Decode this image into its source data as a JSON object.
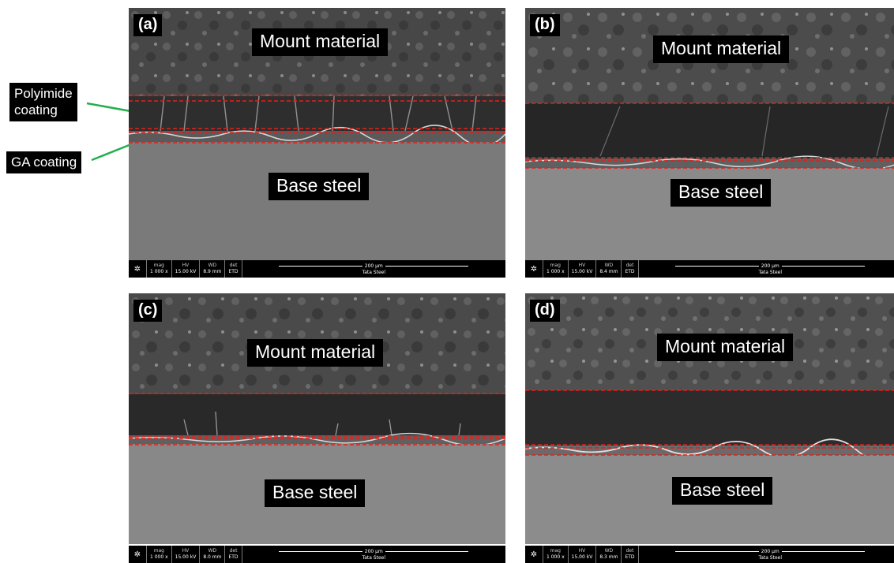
{
  "callouts": {
    "polyimide": "Polyimide\ncoating",
    "ga": "GA coating"
  },
  "panels": [
    {
      "tag": "(a)",
      "mount": "Mount material",
      "base": "Base steel",
      "mag": "1 000 x",
      "hv": "15.00 kV",
      "wd": "8.9 mm",
      "det": "ETD",
      "scale": "200 µm",
      "company": "Tata Steel"
    },
    {
      "tag": "(b)",
      "mount": "Mount material",
      "base": "Base steel",
      "mag": "1 000 x",
      "hv": "15.00 kV",
      "wd": "8.4 mm",
      "det": "ETD",
      "scale": "200 µm",
      "company": "Tata Steel"
    },
    {
      "tag": "(c)",
      "mount": "Mount material",
      "base": "Base steel",
      "mag": "1 000 x",
      "hv": "15.00 kV",
      "wd": "8.0 mm",
      "det": "ETD",
      "scale": "200 µm",
      "company": "Tata Steel"
    },
    {
      "tag": "(d)",
      "mount": "Mount material",
      "base": "Base steel",
      "mag": "1 000 x",
      "hv": "15.00 kV",
      "wd": "8.3 mm",
      "det": "ETD",
      "scale": "200 µm",
      "company": "Tata Steel"
    }
  ],
  "databar_keys": {
    "mag": "mag",
    "hv": "HV",
    "wd": "WD",
    "det": "det"
  },
  "colors": {
    "boundary": "#e0201c",
    "arrow": "#22b04c",
    "mount": "#4a4a4a",
    "coating": "#2a2a2a",
    "base": "#7c7c7c"
  }
}
